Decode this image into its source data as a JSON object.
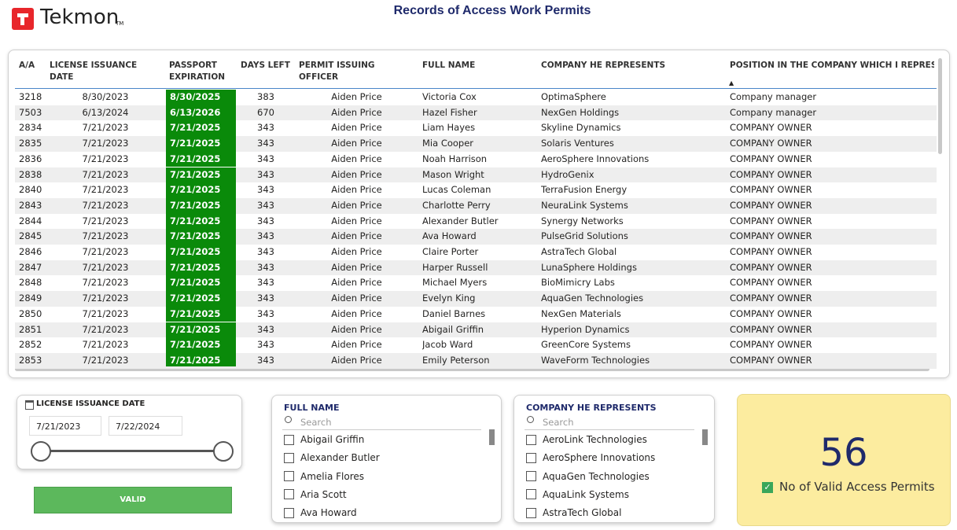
{
  "header": {
    "logo": "Tekmon",
    "title": "Records of Access Work Permits"
  },
  "table": {
    "columns": [
      "A/A",
      "LICENSE ISSUANCE DATE",
      "PASSPORT EXPIRATION",
      "DAYS LEFT",
      "PERMIT ISSUING OFFICER",
      "FULL NAME",
      "COMPANY HE REPRESENTS",
      "POSITION IN THE COMPANY WHICH I REPRESENT"
    ],
    "rows": [
      [
        3218,
        "8/30/2023",
        "8/30/2025",
        383,
        "Aiden Price",
        "Victoria Cox",
        "OptimaSphere",
        "Company manager"
      ],
      [
        7503,
        "6/13/2024",
        "6/13/2026",
        670,
        "Aiden Price",
        "Hazel Fisher",
        "NexGen Holdings",
        "Company manager"
      ],
      [
        2834,
        "7/21/2023",
        "7/21/2025",
        343,
        "Aiden Price",
        "Liam Hayes",
        "Skyline Dynamics",
        "COMPANY OWNER"
      ],
      [
        2835,
        "7/21/2023",
        "7/21/2025",
        343,
        "Aiden Price",
        "Mia Cooper",
        "Solaris Ventures",
        "COMPANY OWNER"
      ],
      [
        2836,
        "7/21/2023",
        "7/21/2025",
        343,
        "Aiden Price",
        "Noah Harrison",
        "AeroSphere Innovations",
        "COMPANY OWNER"
      ],
      [
        2838,
        "7/21/2023",
        "7/21/2025",
        343,
        "Aiden Price",
        "Mason Wright",
        "HydroGenix",
        "COMPANY OWNER"
      ],
      [
        2840,
        "7/21/2023",
        "7/21/2025",
        343,
        "Aiden Price",
        "Lucas Coleman",
        "TerraFusion Energy",
        "COMPANY OWNER"
      ],
      [
        2843,
        "7/21/2023",
        "7/21/2025",
        343,
        "Aiden Price",
        "Charlotte Perry",
        "NeuraLink Systems",
        "COMPANY OWNER"
      ],
      [
        2844,
        "7/21/2023",
        "7/21/2025",
        343,
        "Aiden Price",
        "Alexander Butler",
        "Synergy Networks",
        "COMPANY OWNER"
      ],
      [
        2845,
        "7/21/2023",
        "7/21/2025",
        343,
        "Aiden Price",
        "Ava Howard",
        "PulseGrid Solutions",
        "COMPANY OWNER"
      ],
      [
        2846,
        "7/21/2023",
        "7/21/2025",
        343,
        "Aiden Price",
        "Claire Porter",
        "AstraTech Global",
        "COMPANY OWNER"
      ],
      [
        2847,
        "7/21/2023",
        "7/21/2025",
        343,
        "Aiden Price",
        "Harper Russell",
        "LunaSphere Holdings",
        "COMPANY OWNER"
      ],
      [
        2848,
        "7/21/2023",
        "7/21/2025",
        343,
        "Aiden Price",
        "Michael Myers",
        "BioMimicry Labs",
        "COMPANY OWNER"
      ],
      [
        2849,
        "7/21/2023",
        "7/21/2025",
        343,
        "Aiden Price",
        "Evelyn King",
        "AquaGen Technologies",
        "COMPANY OWNER"
      ],
      [
        2850,
        "7/21/2023",
        "7/21/2025",
        343,
        "Aiden Price",
        "Daniel Barnes",
        "NexGen Materials",
        "COMPANY OWNER"
      ],
      [
        2851,
        "7/21/2023",
        "7/21/2025",
        343,
        "Aiden Price",
        "Abigail Griffin",
        "Hyperion Dynamics",
        "COMPANY OWNER"
      ],
      [
        2852,
        "7/21/2023",
        "7/21/2025",
        343,
        "Aiden Price",
        "Jacob Ward",
        "GreenCore Systems",
        "COMPANY OWNER"
      ],
      [
        2853,
        "7/21/2023",
        "7/21/2025",
        343,
        "Aiden Price",
        "Emily Peterson",
        "WaveForm Technologies",
        "COMPANY OWNER"
      ]
    ]
  },
  "date_slicer": {
    "title": "LICENSE ISSUANCE DATE",
    "from": "7/21/2023",
    "to": "7/22/2024"
  },
  "button": {
    "label": "VALID"
  },
  "name_slicer": {
    "title": "FULL NAME",
    "search": "Search",
    "items": [
      "Abigail Griffin",
      "Alexander Butler",
      "Amelia Flores",
      "Aria Scott",
      "Ava Howard"
    ]
  },
  "company_slicer": {
    "title": "COMPANY HE REPRESENTS",
    "search": "Search",
    "items": [
      "AeroLink Technologies",
      "AeroSphere Innovations",
      "AquaGen Technologies",
      "AquaLink Systems",
      "AstraTech Global"
    ]
  },
  "card": {
    "value": 56,
    "label": "No of Valid Access Permits"
  }
}
